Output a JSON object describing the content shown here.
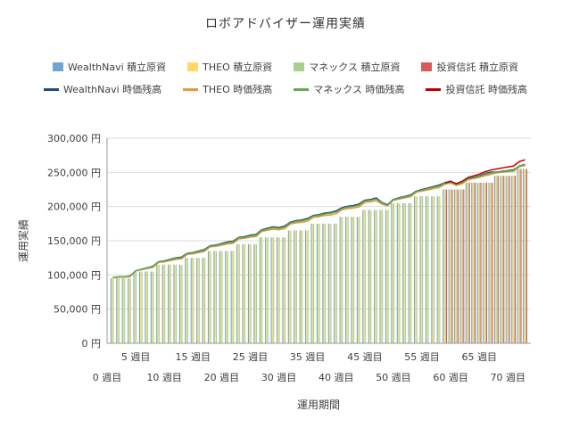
{
  "title": "ロボアドバイザー運用実績",
  "axes": {
    "y_title": "運用実績",
    "x_title": "運用期間",
    "y_ticks": [
      {
        "value": 0,
        "label": "0 円"
      },
      {
        "value": 50000,
        "label": "50,000 円"
      },
      {
        "value": 100000,
        "label": "100,000 円"
      },
      {
        "value": 150000,
        "label": "150,000 円"
      },
      {
        "value": 200000,
        "label": "200,000 円"
      },
      {
        "value": 250000,
        "label": "250,000 円"
      },
      {
        "value": 300000,
        "label": "300,000 円"
      }
    ],
    "x_ticks_row1": [
      {
        "week": 5,
        "label": "5 週目"
      },
      {
        "week": 15,
        "label": "15 週目"
      },
      {
        "week": 25,
        "label": "25 週目"
      },
      {
        "week": 35,
        "label": "35 週目"
      },
      {
        "week": 45,
        "label": "45 週目"
      },
      {
        "week": 55,
        "label": "55 週目"
      },
      {
        "week": 65,
        "label": "65 週目"
      }
    ],
    "x_ticks_row2": [
      {
        "week": 0,
        "label": "0 週目"
      },
      {
        "week": 10,
        "label": "10 週目"
      },
      {
        "week": 20,
        "label": "20 週目"
      },
      {
        "week": 30,
        "label": "30 週目"
      },
      {
        "week": 40,
        "label": "40 週目"
      },
      {
        "week": 50,
        "label": "50 週目"
      },
      {
        "week": 60,
        "label": "60 週目"
      },
      {
        "week": 70,
        "label": "70 週目"
      }
    ]
  },
  "legend": {
    "bar_items": [
      {
        "label": "WealthNavi  積立原資",
        "color": "#71a6d2"
      },
      {
        "label": "THEO  積立原資",
        "color": "#ffd966"
      },
      {
        "label": "マネックス  積立原資",
        "color": "#a9d08e"
      },
      {
        "label": "投資信託  積立原資",
        "color": "#d95858"
      }
    ],
    "line_items": [
      {
        "label": "WealthNavi  時価残高",
        "color": "#1f4e79"
      },
      {
        "label": "THEO  時価残高",
        "color": "#e89b3c"
      },
      {
        "label": "マネックス  時価残高",
        "color": "#6aa84f"
      },
      {
        "label": "投資信託  時価残高",
        "color": "#c00000"
      }
    ]
  },
  "chart_data": {
    "type": "bar",
    "combo": "grouped weekly bars (積立原資) with overlaid lines (時価残高)",
    "title": "ロボアドバイザー運用実績",
    "xlabel": "運用期間",
    "ylabel": "運用実績",
    "x_unit": "週目",
    "y_unit": "円",
    "x_range": [
      0,
      74
    ],
    "ylim": [
      0,
      300000
    ],
    "grid": "horizontal gridlines every 50,000 円",
    "legend_position": "top, two rows",
    "weeks": [
      1,
      2,
      3,
      4,
      5,
      6,
      7,
      8,
      9,
      10,
      11,
      12,
      13,
      14,
      15,
      16,
      17,
      18,
      19,
      20,
      21,
      22,
      23,
      24,
      25,
      26,
      27,
      28,
      29,
      30,
      31,
      32,
      33,
      34,
      35,
      36,
      37,
      38,
      39,
      40,
      41,
      42,
      43,
      44,
      45,
      46,
      47,
      48,
      49,
      50,
      51,
      52,
      53,
      54,
      55,
      56,
      57,
      58,
      59,
      60,
      61,
      62,
      63,
      64,
      65,
      66,
      67,
      68,
      69,
      70,
      71,
      72,
      73
    ],
    "bar_series": [
      {
        "id": "wealthnavi",
        "name": "WealthNavi 積立原資",
        "color": "#71a6d2",
        "values": [
          95000,
          95000,
          95000,
          95000,
          105000,
          105000,
          105000,
          105000,
          115000,
          115000,
          115000,
          115000,
          115000,
          125000,
          125000,
          125000,
          125000,
          135000,
          135000,
          135000,
          135000,
          135000,
          145000,
          145000,
          145000,
          145000,
          155000,
          155000,
          155000,
          155000,
          155000,
          165000,
          165000,
          165000,
          165000,
          175000,
          175000,
          175000,
          175000,
          175000,
          185000,
          185000,
          185000,
          185000,
          195000,
          195000,
          195000,
          195000,
          195000,
          205000,
          205000,
          205000,
          205000,
          215000,
          215000,
          215000,
          215000,
          215000,
          225000,
          225000,
          225000,
          225000,
          235000,
          235000,
          235000,
          235000,
          235000,
          245000,
          245000,
          245000,
          245000,
          255000,
          255000
        ]
      },
      {
        "id": "theo",
        "name": "THEO 積立原資",
        "color": "#ffd966",
        "values": [
          95000,
          95000,
          95000,
          95000,
          105000,
          105000,
          105000,
          105000,
          115000,
          115000,
          115000,
          115000,
          115000,
          125000,
          125000,
          125000,
          125000,
          135000,
          135000,
          135000,
          135000,
          135000,
          145000,
          145000,
          145000,
          145000,
          155000,
          155000,
          155000,
          155000,
          155000,
          165000,
          165000,
          165000,
          165000,
          175000,
          175000,
          175000,
          175000,
          175000,
          185000,
          185000,
          185000,
          185000,
          195000,
          195000,
          195000,
          195000,
          195000,
          205000,
          205000,
          205000,
          205000,
          215000,
          215000,
          215000,
          215000,
          215000,
          225000,
          225000,
          225000,
          225000,
          235000,
          235000,
          235000,
          235000,
          235000,
          245000,
          245000,
          245000,
          245000,
          255000,
          255000
        ]
      },
      {
        "id": "monex",
        "name": "マネックス 積立原資",
        "color": "#a9d08e",
        "values": [
          95000,
          95000,
          95000,
          95000,
          105000,
          105000,
          105000,
          105000,
          115000,
          115000,
          115000,
          115000,
          115000,
          125000,
          125000,
          125000,
          125000,
          135000,
          135000,
          135000,
          135000,
          135000,
          145000,
          145000,
          145000,
          145000,
          155000,
          155000,
          155000,
          155000,
          155000,
          165000,
          165000,
          165000,
          165000,
          175000,
          175000,
          175000,
          175000,
          175000,
          185000,
          185000,
          185000,
          185000,
          195000,
          195000,
          195000,
          195000,
          195000,
          205000,
          205000,
          205000,
          205000,
          215000,
          215000,
          215000,
          215000,
          215000,
          225000,
          225000,
          225000,
          225000,
          235000,
          235000,
          235000,
          235000,
          235000,
          245000,
          245000,
          245000,
          245000,
          255000,
          255000
        ]
      },
      {
        "id": "toshin",
        "name": "投資信託 積立原資",
        "color": "#d95858",
        "values": [
          null,
          null,
          null,
          null,
          null,
          null,
          null,
          null,
          null,
          null,
          null,
          null,
          null,
          null,
          null,
          null,
          null,
          null,
          null,
          null,
          null,
          null,
          null,
          null,
          null,
          null,
          null,
          null,
          null,
          null,
          null,
          null,
          null,
          null,
          null,
          null,
          null,
          null,
          null,
          null,
          null,
          null,
          null,
          null,
          null,
          null,
          null,
          null,
          null,
          null,
          null,
          null,
          null,
          null,
          null,
          null,
          null,
          null,
          225000,
          225000,
          225000,
          225000,
          235000,
          235000,
          235000,
          235000,
          235000,
          245000,
          245000,
          245000,
          245000,
          255000,
          255000
        ]
      }
    ],
    "line_series": [
      {
        "id": "wealthnavi",
        "name": "WealthNavi 時価残高",
        "color": "#1f4e79",
        "values": [
          96100,
          97200,
          97200,
          98300,
          106100,
          108300,
          110500,
          112700,
          119400,
          120500,
          122700,
          124900,
          126000,
          131600,
          132700,
          134900,
          137100,
          142700,
          143800,
          146000,
          148200,
          149300,
          154900,
          156000,
          158200,
          159300,
          166000,
          168200,
          170400,
          169300,
          171500,
          177100,
          179300,
          180400,
          182600,
          187100,
          188200,
          190400,
          191500,
          193700,
          198200,
          200400,
          201500,
          203700,
          209300,
          210400,
          212600,
          206000,
          202700,
          210500,
          212700,
          214900,
          217100,
          222700,
          224900,
          227100,
          229300,
          231500,
          234900,
          237100,
          232700,
          236000,
          240500,
          242700,
          244900,
          248200,
          250400,
          250500,
          251600,
          252700,
          253800,
          259400,
          261600
        ]
      },
      {
        "id": "theo",
        "name": "THEO 時価残高",
        "color": "#e89b3c",
        "values": [
          95850,
          96700,
          96700,
          97550,
          105850,
          107550,
          109250,
          110950,
          118400,
          119250,
          120950,
          122650,
          123500,
          130100,
          130950,
          132650,
          134350,
          140950,
          141800,
          143500,
          145200,
          146050,
          152650,
          153500,
          155200,
          156050,
          163500,
          165200,
          166900,
          166050,
          167750,
          174350,
          176050,
          176900,
          178600,
          184350,
          185200,
          186900,
          187750,
          189450,
          195200,
          196900,
          197750,
          199450,
          206050,
          206900,
          208600,
          203500,
          200950,
          209250,
          210950,
          212650,
          214350,
          220950,
          222650,
          224350,
          226050,
          227750,
          232650,
          234350,
          230950,
          233500,
          239250,
          240950,
          242650,
          245200,
          246900,
          249250,
          250100,
          250950,
          251800,
          258400,
          260100
        ]
      },
      {
        "id": "monex",
        "name": "マネックス 時価残高",
        "color": "#6aa84f",
        "values": [
          96000,
          97000,
          97000,
          98000,
          106000,
          108000,
          110000,
          112000,
          119000,
          120000,
          122000,
          124000,
          125000,
          131000,
          132000,
          134000,
          136000,
          142000,
          143000,
          145000,
          147000,
          148000,
          154000,
          155000,
          157000,
          158000,
          165000,
          167000,
          169000,
          168000,
          170000,
          176000,
          178000,
          179000,
          181000,
          186000,
          187000,
          189000,
          190000,
          192000,
          197000,
          199000,
          200000,
          202000,
          208000,
          209000,
          211000,
          205000,
          202000,
          210000,
          212000,
          214000,
          216000,
          222000,
          224000,
          226000,
          228000,
          230000,
          234000,
          236000,
          232000,
          235000,
          240000,
          242000,
          244000,
          247000,
          249000,
          250000,
          251000,
          252000,
          253000,
          259000,
          261000
        ]
      },
      {
        "id": "toshin",
        "name": "投資信託 時価残高",
        "color": "#c00000",
        "values": [
          null,
          null,
          null,
          null,
          null,
          null,
          null,
          null,
          null,
          null,
          null,
          null,
          null,
          null,
          null,
          null,
          null,
          null,
          null,
          null,
          null,
          null,
          null,
          null,
          null,
          null,
          null,
          null,
          null,
          null,
          null,
          null,
          null,
          null,
          null,
          null,
          null,
          null,
          null,
          null,
          null,
          null,
          null,
          null,
          null,
          null,
          null,
          null,
          null,
          null,
          null,
          null,
          null,
          null,
          null,
          null,
          null,
          null,
          234500,
          237000,
          233500,
          237000,
          242500,
          245000,
          247500,
          251000,
          253500,
          255000,
          256500,
          258000,
          259500,
          266000,
          268500
        ]
      }
    ]
  }
}
